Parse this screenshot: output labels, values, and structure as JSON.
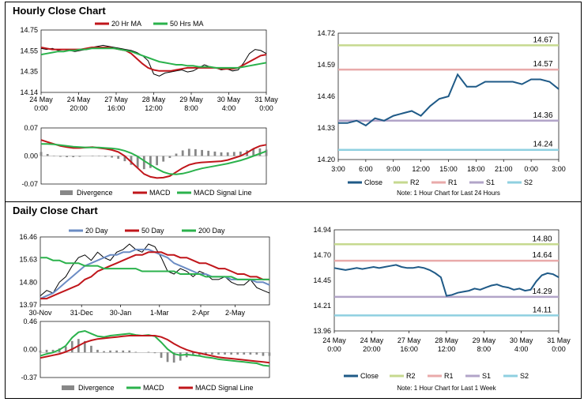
{
  "sections": {
    "hourly_title": "Hourly Close Chart",
    "daily_title": "Daily Close Chart"
  },
  "colors": {
    "close": "#1f5a87",
    "ma_red": "#c0161b",
    "ma_green": "#2bb24c",
    "ma_blue": "#6b8cc4",
    "r2": "#c6d98f",
    "r1": "#e9aaaa",
    "s1": "#b2a4c8",
    "s2": "#8fd0e0",
    "divergence": "#888888"
  },
  "chart_data": [
    {
      "id": "hourly_price",
      "type": "line",
      "ylim": [
        14.14,
        14.75
      ],
      "yticks": [
        "14.75",
        "14.55",
        "14.35",
        "14.14"
      ],
      "xticks": [
        "24 May\n0:00",
        "24 May\n20:00",
        "27 May\n16:00",
        "28 May\n12:00",
        "29 May\n8:00",
        "30 May\n4:00",
        "31 May\n0:00"
      ],
      "legend": [
        "20 Hr MA",
        "50 Hrs MA"
      ],
      "series": [
        {
          "name": "Price",
          "values": [
            14.57,
            14.56,
            14.57,
            14.55,
            14.56,
            14.55,
            14.54,
            14.55,
            14.56,
            14.58,
            14.59,
            14.6,
            14.59,
            14.58,
            14.57,
            14.56,
            14.55,
            14.53,
            14.5,
            14.45,
            14.32,
            14.3,
            14.33,
            14.34,
            14.35,
            14.36,
            14.34,
            14.35,
            14.38,
            14.41,
            14.39,
            14.38,
            14.36,
            14.37,
            14.35,
            14.36,
            14.43,
            14.52,
            14.56,
            14.55,
            14.52
          ]
        },
        {
          "name": "20 Hr MA",
          "values": [
            14.58,
            14.57,
            14.56,
            14.56,
            14.56,
            14.56,
            14.56,
            14.56,
            14.57,
            14.58,
            14.58,
            14.58,
            14.58,
            14.57,
            14.56,
            14.55,
            14.52,
            14.47,
            14.42,
            14.38,
            14.36,
            14.35,
            14.35,
            14.35,
            14.36,
            14.37,
            14.38,
            14.38,
            14.38,
            14.38,
            14.38,
            14.38,
            14.37,
            14.37,
            14.37,
            14.38,
            14.41,
            14.44,
            14.47,
            14.5,
            14.51
          ]
        },
        {
          "name": "50 Hrs MA",
          "values": [
            14.51,
            14.52,
            14.53,
            14.54,
            14.54,
            14.55,
            14.55,
            14.56,
            14.56,
            14.57,
            14.57,
            14.57,
            14.57,
            14.57,
            14.56,
            14.55,
            14.54,
            14.52,
            14.5,
            14.48,
            14.46,
            14.44,
            14.43,
            14.42,
            14.41,
            14.41,
            14.4,
            14.4,
            14.39,
            14.39,
            14.39,
            14.38,
            14.38,
            14.38,
            14.38,
            14.38,
            14.39,
            14.4,
            14.41,
            14.42,
            14.43
          ]
        }
      ]
    },
    {
      "id": "hourly_macd",
      "type": "line",
      "ylim": [
        -0.07,
        0.07
      ],
      "yticks": [
        "0.07",
        "0.00",
        "-0.07"
      ],
      "legend": [
        "Divergence",
        "MACD",
        "MACD Signal Line"
      ],
      "series": [
        {
          "name": "MACD",
          "values": [
            0.04,
            0.035,
            0.03,
            0.025,
            0.022,
            0.02,
            0.02,
            0.021,
            0.022,
            0.02,
            0.018,
            0.015,
            0.01,
            0.0,
            -0.015,
            -0.03,
            -0.045,
            -0.052,
            -0.055,
            -0.054,
            -0.05,
            -0.04,
            -0.03,
            -0.022,
            -0.018,
            -0.016,
            -0.015,
            -0.014,
            -0.013,
            -0.01,
            -0.005,
            0.0,
            0.008,
            0.018,
            0.025,
            0.028
          ]
        },
        {
          "name": "MACD Signal Line",
          "values": [
            0.03,
            0.03,
            0.029,
            0.027,
            0.025,
            0.023,
            0.022,
            0.021,
            0.021,
            0.021,
            0.02,
            0.019,
            0.017,
            0.013,
            0.007,
            -0.001,
            -0.012,
            -0.022,
            -0.032,
            -0.04,
            -0.045,
            -0.046,
            -0.044,
            -0.04,
            -0.035,
            -0.031,
            -0.028,
            -0.025,
            -0.022,
            -0.019,
            -0.015,
            -0.011,
            -0.006,
            0.0,
            0.006,
            0.012
          ]
        },
        {
          "name": "Divergence",
          "values": [
            0.01,
            0.005,
            0.001,
            -0.002,
            -0.003,
            -0.003,
            -0.002,
            0.0,
            0.001,
            -0.001,
            -0.002,
            -0.004,
            -0.007,
            -0.013,
            -0.022,
            -0.029,
            -0.033,
            -0.03,
            -0.023,
            -0.014,
            -0.005,
            0.006,
            0.014,
            0.018,
            0.017,
            0.015,
            0.013,
            0.011,
            0.009,
            0.009,
            0.01,
            0.011,
            0.014,
            0.018,
            0.019,
            0.016
          ]
        }
      ]
    },
    {
      "id": "hourly_pivot",
      "type": "line",
      "ylim": [
        14.2,
        14.72
      ],
      "yticks": [
        "14.72",
        "14.59",
        "14.46",
        "14.33",
        "14.20"
      ],
      "xticks": [
        "3:00",
        "6:00",
        "9:00",
        "12:00",
        "15:00",
        "18:00",
        "21:00",
        "0:00",
        "3:00"
      ],
      "levels": [
        {
          "name": "R2",
          "value": 14.67,
          "label": "14.67"
        },
        {
          "name": "R1",
          "value": 14.57,
          "label": "14.57"
        },
        {
          "name": "S1",
          "value": 14.36,
          "label": "14.36"
        },
        {
          "name": "S2",
          "value": 14.24,
          "label": "14.24"
        }
      ],
      "legend": [
        "Close",
        "R2",
        "R1",
        "S1",
        "S2"
      ],
      "note": "Note: 1 Hour Chart for Last 24 Hours",
      "series": [
        {
          "name": "Close",
          "values": [
            14.35,
            14.35,
            14.36,
            14.34,
            14.37,
            14.36,
            14.38,
            14.39,
            14.4,
            14.38,
            14.42,
            14.45,
            14.46,
            14.55,
            14.5,
            14.5,
            14.52,
            14.52,
            14.52,
            14.52,
            14.51,
            14.53,
            14.53,
            14.52,
            14.49
          ]
        }
      ]
    },
    {
      "id": "daily_price",
      "type": "line",
      "ylim": [
        13.97,
        16.46
      ],
      "yticks": [
        "16.46",
        "15.63",
        "14.80",
        "13.97"
      ],
      "xticks": [
        "30-Nov",
        "31-Dec",
        "30-Jan",
        "1-Mar",
        "2-Apr",
        "2-May"
      ],
      "legend": [
        "20 Day",
        "50 Day",
        "200 Day"
      ],
      "series": [
        {
          "name": "Price",
          "values": [
            14.3,
            14.5,
            14.4,
            14.8,
            15.0,
            15.4,
            15.7,
            15.8,
            15.6,
            15.9,
            15.7,
            15.6,
            15.9,
            16.0,
            16.2,
            16.0,
            15.9,
            16.2,
            16.1,
            15.7,
            15.2,
            15.1,
            15.3,
            15.2,
            15.0,
            15.2,
            15.1,
            14.9,
            14.9,
            15.0,
            14.8,
            14.7,
            14.7,
            14.9,
            14.6,
            14.5,
            14.4
          ]
        },
        {
          "name": "20 Day",
          "values": [
            14.2,
            14.3,
            14.4,
            14.6,
            14.8,
            15.0,
            15.2,
            15.4,
            15.5,
            15.6,
            15.7,
            15.8,
            15.8,
            15.9,
            15.9,
            16.0,
            16.0,
            16.0,
            15.9,
            15.8,
            15.7,
            15.5,
            15.4,
            15.3,
            15.2,
            15.1,
            15.1,
            15.0,
            15.0,
            15.0,
            14.9,
            14.9,
            14.9,
            14.9,
            14.8,
            14.8,
            14.7
          ]
        },
        {
          "name": "50 Day",
          "values": [
            14.2,
            14.2,
            14.3,
            14.4,
            14.5,
            14.6,
            14.7,
            14.9,
            15.0,
            15.2,
            15.3,
            15.4,
            15.5,
            15.6,
            15.7,
            15.8,
            15.8,
            15.9,
            15.9,
            15.9,
            15.8,
            15.8,
            15.7,
            15.7,
            15.6,
            15.5,
            15.5,
            15.4,
            15.3,
            15.3,
            15.2,
            15.1,
            15.1,
            15.0,
            15.0,
            14.9,
            14.9
          ]
        },
        {
          "name": "200 Day",
          "values": [
            15.7,
            15.7,
            15.6,
            15.6,
            15.5,
            15.5,
            15.5,
            15.4,
            15.4,
            15.4,
            15.3,
            15.3,
            15.3,
            15.3,
            15.3,
            15.3,
            15.2,
            15.2,
            15.2,
            15.2,
            15.2,
            15.2,
            15.1,
            15.1,
            15.1,
            15.1,
            15.0,
            15.0,
            15.0,
            15.0,
            15.0,
            14.9,
            14.9,
            14.9,
            14.9,
            14.9,
            14.9
          ]
        }
      ]
    },
    {
      "id": "daily_macd",
      "type": "line",
      "ylim": [
        -0.37,
        0.46
      ],
      "yticks": [
        "0.46",
        "0.00",
        "-0.37"
      ],
      "legend": [
        "Divergence",
        "MACD",
        "MACD Signal Line"
      ],
      "series": [
        {
          "name": "MACD",
          "values": [
            -0.05,
            -0.02,
            0.0,
            0.04,
            0.1,
            0.22,
            0.3,
            0.32,
            0.28,
            0.24,
            0.23,
            0.25,
            0.26,
            0.27,
            0.28,
            0.26,
            0.25,
            0.26,
            0.24,
            0.15,
            0.05,
            -0.02,
            -0.04,
            -0.03,
            -0.04,
            -0.05,
            -0.07,
            -0.08,
            -0.1,
            -0.11,
            -0.12,
            -0.13,
            -0.14,
            -0.15,
            -0.16,
            -0.19,
            -0.2
          ]
        },
        {
          "name": "MACD Signal Line",
          "values": [
            -0.08,
            -0.06,
            -0.04,
            -0.02,
            0.01,
            0.05,
            0.1,
            0.15,
            0.18,
            0.2,
            0.21,
            0.22,
            0.23,
            0.24,
            0.25,
            0.25,
            0.25,
            0.25,
            0.25,
            0.23,
            0.19,
            0.13,
            0.08,
            0.04,
            0.01,
            -0.01,
            -0.03,
            -0.05,
            -0.07,
            -0.08,
            -0.09,
            -0.1,
            -0.11,
            -0.12,
            -0.13,
            -0.14,
            -0.15
          ]
        },
        {
          "name": "Divergence",
          "values": [
            0.03,
            0.04,
            0.04,
            0.06,
            0.09,
            0.17,
            0.2,
            0.17,
            0.1,
            0.04,
            0.02,
            0.03,
            0.03,
            0.03,
            0.03,
            0.01,
            0.0,
            0.01,
            -0.01,
            -0.08,
            -0.14,
            -0.15,
            -0.12,
            -0.07,
            -0.05,
            -0.04,
            -0.04,
            -0.03,
            -0.03,
            -0.03,
            -0.03,
            -0.03,
            -0.03,
            -0.03,
            -0.03,
            -0.05,
            -0.05
          ]
        }
      ]
    },
    {
      "id": "daily_pivot",
      "type": "line",
      "ylim": [
        13.96,
        14.94
      ],
      "yticks": [
        "14.94",
        "14.70",
        "14.45",
        "14.21",
        "13.96"
      ],
      "xticks": [
        "24 May\n0:00",
        "24 May\n20:00",
        "27 May\n16:00",
        "28 May\n12:00",
        "29 May\n8:00",
        "30 May\n4:00",
        "31 May\n0:00"
      ],
      "levels": [
        {
          "name": "R2",
          "value": 14.8,
          "label": "14.80"
        },
        {
          "name": "R1",
          "value": 14.64,
          "label": "14.64"
        },
        {
          "name": "S1",
          "value": 14.29,
          "label": "14.29"
        },
        {
          "name": "S2",
          "value": 14.11,
          "label": "14.11"
        }
      ],
      "legend": [
        "Close",
        "R2",
        "R1",
        "S1",
        "S2"
      ],
      "note": "Note: 1 Hour Chart for Last 1 Week",
      "series": [
        {
          "name": "Close",
          "values": [
            14.57,
            14.56,
            14.55,
            14.56,
            14.57,
            14.56,
            14.57,
            14.58,
            14.57,
            14.58,
            14.59,
            14.6,
            14.58,
            14.57,
            14.57,
            14.58,
            14.57,
            14.55,
            14.52,
            14.48,
            14.3,
            14.31,
            14.33,
            14.34,
            14.35,
            14.37,
            14.36,
            14.38,
            14.4,
            14.41,
            14.39,
            14.38,
            14.36,
            14.37,
            14.35,
            14.36,
            14.44,
            14.5,
            14.52,
            14.51,
            14.48
          ]
        }
      ]
    }
  ]
}
